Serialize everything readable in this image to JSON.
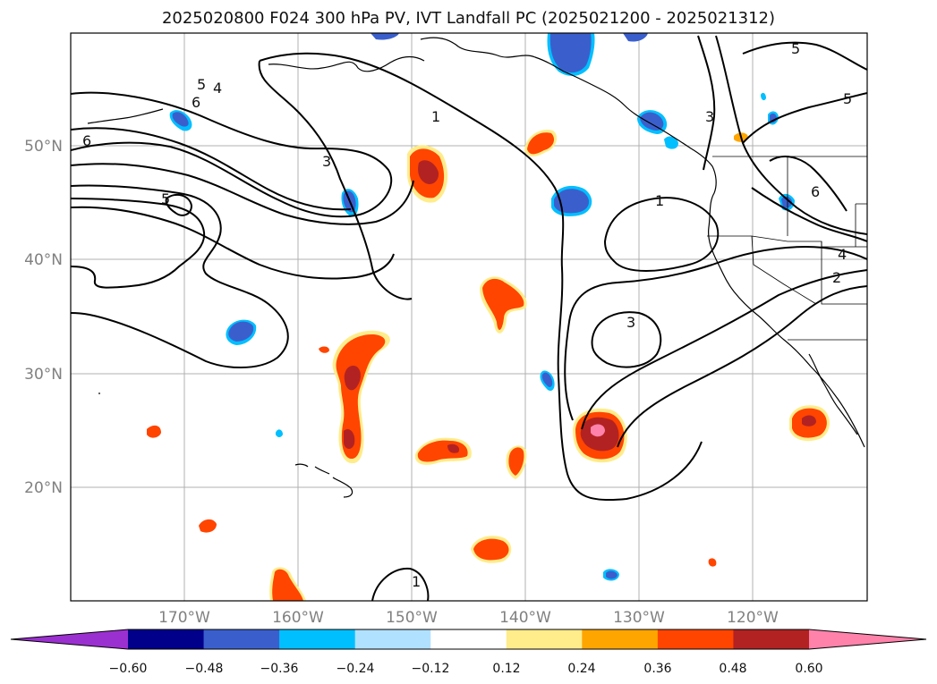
{
  "title": "2025020800 F024 300 hPa PV, IVT Landfall PC (2025021200 - 2025021312)",
  "lat_labels": [
    "50°N",
    "40°N",
    "30°N",
    "20°N"
  ],
  "lon_labels": [
    "170°W",
    "160°W",
    "150°W",
    "140°W",
    "130°W",
    "120°W"
  ],
  "colorbar": {
    "ticks": [
      "−0.60",
      "−0.48",
      "−0.36",
      "−0.24",
      "−0.12",
      "0.12",
      "0.24",
      "0.36",
      "0.48",
      "0.60"
    ],
    "colors": [
      "#9b30d0",
      "#00008b",
      "#3a5fcd",
      "#00bfff",
      "#b0e2ff",
      "#ffffff",
      "#ffec8b",
      "#ffa500",
      "#ff4500",
      "#b22222",
      "#ff82ab"
    ]
  },
  "contour_labels": [
    "6",
    "6",
    "5",
    "4",
    "5",
    "3",
    "1",
    "3",
    "5",
    "5",
    "1",
    "6",
    "4",
    "2",
    "3",
    "1"
  ],
  "colors": {
    "pos_yellow": "#ffec8b",
    "pos_orange": "#ffa500",
    "pos_red": "#ff4500",
    "pos_darkred": "#b22222",
    "pos_pink": "#ff82ab",
    "neg_light": "#b0e2ff",
    "neg_sky": "#00bfff",
    "neg_blue": "#3a5fcd",
    "neg_navy": "#00008b"
  }
}
